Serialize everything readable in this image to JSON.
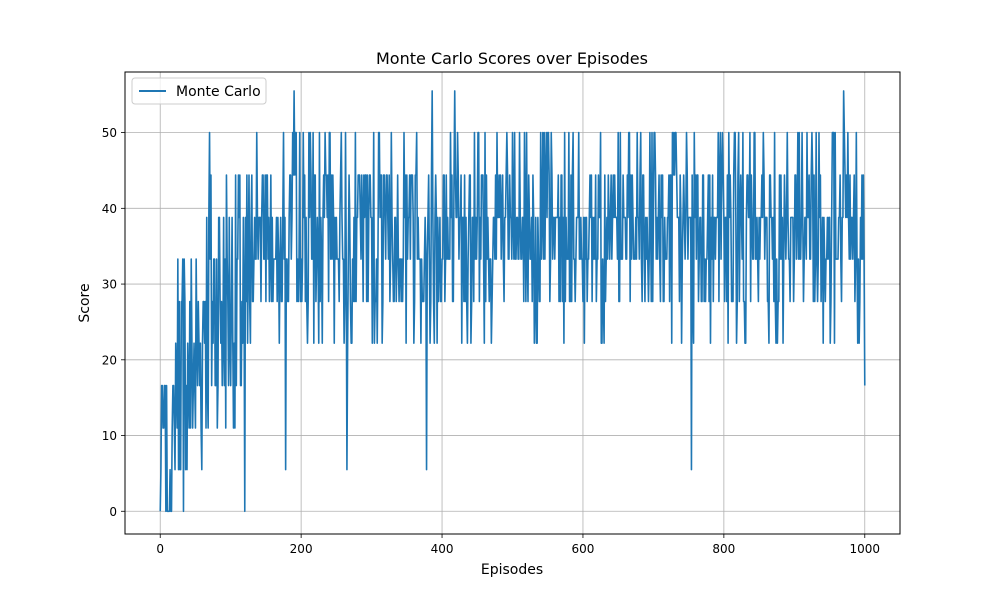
{
  "chart_data": {
    "type": "line",
    "title": "Monte Carlo Scores over Episodes",
    "xlabel": "Episodes",
    "ylabel": "Score",
    "xlim": [
      -50,
      1050
    ],
    "ylim": [
      -3,
      58
    ],
    "xticks": [
      0,
      200,
      400,
      600,
      800,
      1000
    ],
    "yticks": [
      0,
      10,
      20,
      30,
      40,
      50
    ],
    "grid": true,
    "legend_position": "top-left",
    "colors": {
      "series": "#1f77b4",
      "grid": "#b0b0b0",
      "axes": "#000000"
    },
    "series": [
      {
        "name": "Monte Carlo",
        "x_start": 0,
        "x_step": 1,
        "seed": 7,
        "levels": [
          0,
          5.5,
          11,
          16.6,
          22.2,
          27.7,
          33.3,
          38.8,
          44.4,
          50,
          55.5
        ],
        "description_phases": [
          {
            "from": 0,
            "to": 20,
            "low": 0,
            "high": 16.6
          },
          {
            "from": 20,
            "to": 60,
            "low": 5.5,
            "high": 33.3
          },
          {
            "from": 60,
            "to": 130,
            "low": 11,
            "high": 44.4
          },
          {
            "from": 130,
            "to": 1000,
            "low": 16.6,
            "high": 50
          }
        ],
        "notable_points": [
          {
            "x": 0,
            "y": 0
          },
          {
            "x": 2,
            "y": 16.6
          },
          {
            "x": 12,
            "y": 0
          },
          {
            "x": 33,
            "y": 0
          },
          {
            "x": 70,
            "y": 50
          },
          {
            "x": 120,
            "y": 0
          },
          {
            "x": 178,
            "y": 5.5
          },
          {
            "x": 190,
            "y": 55.5
          },
          {
            "x": 211,
            "y": 50
          },
          {
            "x": 265,
            "y": 5.5
          },
          {
            "x": 378,
            "y": 5.5
          },
          {
            "x": 386,
            "y": 55.5
          },
          {
            "x": 418,
            "y": 55.5
          },
          {
            "x": 754,
            "y": 5.5
          },
          {
            "x": 970,
            "y": 55.5
          },
          {
            "x": 1000,
            "y": 16.6
          }
        ]
      }
    ]
  }
}
